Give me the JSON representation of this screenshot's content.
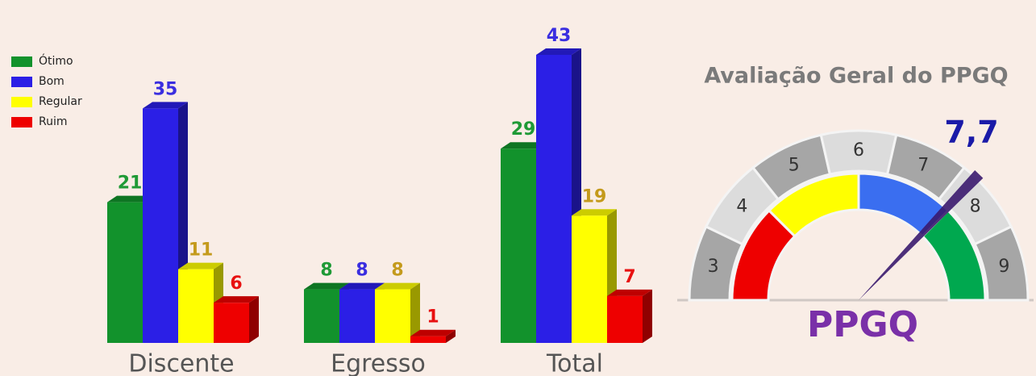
{
  "chart_data": [
    {
      "type": "bar3d",
      "categories": [
        "Discente",
        "Egresso",
        "Total"
      ],
      "series": [
        {
          "name": "Ótimo",
          "color": "#12922c",
          "label_color": "#1f9a36",
          "values": [
            21,
            8,
            29
          ]
        },
        {
          "name": "Bom",
          "color": "#2b1fe6",
          "label_color": "#3a2ee0",
          "values": [
            35,
            8,
            43
          ]
        },
        {
          "name": "Regular",
          "color": "#ffff00",
          "label_color": "#c49a1c",
          "values": [
            11,
            8,
            19
          ]
        },
        {
          "name": "Ruim",
          "color": "#ee0000",
          "label_color": "#e81010",
          "values": [
            6,
            1,
            7
          ]
        }
      ],
      "legend": "top-left"
    },
    {
      "type": "gauge",
      "title": "Avaliação Geral do PPGQ",
      "value": 7.7,
      "value_label": "7,7",
      "label": "PPGQ",
      "lim": [
        2.5,
        9.5
      ],
      "ticks": [
        3,
        4,
        5,
        6,
        7,
        8,
        9
      ],
      "band_colors": [
        "#ee0000",
        "#ffff00",
        "#3a6ef0",
        "#00a84f"
      ],
      "needle_color": "#3a1a6e",
      "value_color": "#1a1aa8",
      "label_color": "#7a30a8"
    }
  ]
}
